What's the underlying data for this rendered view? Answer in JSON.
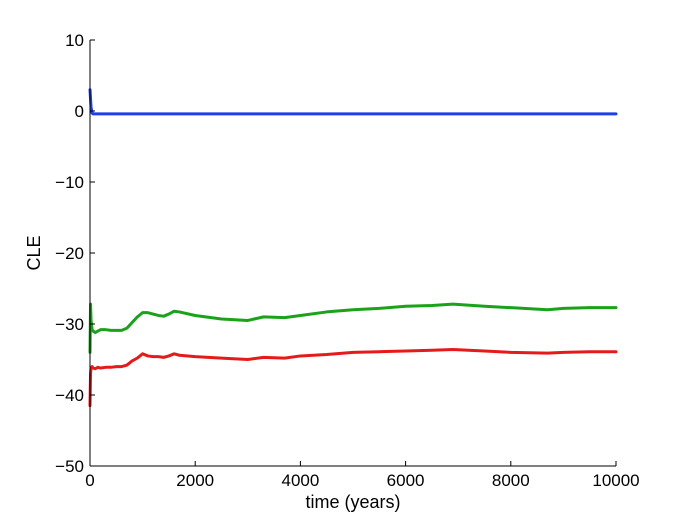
{
  "chart_data": {
    "type": "line",
    "title": "",
    "xlabel": "time (years)",
    "ylabel": "CLE",
    "xlim": [
      0,
      10000
    ],
    "ylim": [
      -50,
      10
    ],
    "xticks": [
      0,
      2000,
      4000,
      6000,
      8000,
      10000
    ],
    "xtick_labels": [
      "0",
      "2000",
      "4000",
      "6000",
      "8000",
      "10000"
    ],
    "yticks": [
      10,
      0,
      -10,
      -20,
      -30,
      -40,
      -50
    ],
    "ytick_labels": [
      "10",
      "0",
      "−10",
      "−20",
      "−30",
      "−40",
      "−50"
    ],
    "grid": false,
    "legend": null,
    "series": [
      {
        "color": "#1f3fe6",
        "x": [
          0,
          20,
          40,
          60,
          100,
          200,
          500,
          1000,
          2000,
          3000,
          4000,
          5000,
          6000,
          7000,
          8000,
          9000,
          10000
        ],
        "y": [
          3,
          0.5,
          -0.3,
          -0.4,
          -0.4,
          -0.4,
          -0.4,
          -0.4,
          -0.4,
          -0.4,
          -0.4,
          -0.4,
          -0.4,
          -0.4,
          -0.4,
          -0.4,
          -0.4
        ]
      },
      {
        "color": "#1aa31a",
        "x": [
          0,
          10,
          20,
          40,
          60,
          100,
          150,
          200,
          300,
          400,
          500,
          600,
          700,
          800,
          900,
          1000,
          1100,
          1200,
          1300,
          1400,
          1500,
          1600,
          1700,
          2000,
          2500,
          3000,
          3300,
          3700,
          4000,
          4500,
          5000,
          5500,
          6000,
          6500,
          6900,
          7500,
          8000,
          8700,
          9000,
          9500,
          10000
        ],
        "y": [
          -34,
          -27.2,
          -29.5,
          -30.8,
          -31,
          -31.2,
          -31,
          -30.8,
          -30.8,
          -30.9,
          -30.9,
          -30.9,
          -30.6,
          -29.8,
          -29.0,
          -28.4,
          -28.4,
          -28.6,
          -28.8,
          -28.9,
          -28.6,
          -28.2,
          -28.3,
          -28.8,
          -29.3,
          -29.5,
          -29.0,
          -29.1,
          -28.8,
          -28.3,
          -28.0,
          -27.8,
          -27.5,
          -27.4,
          -27.2,
          -27.5,
          -27.7,
          -28.0,
          -27.8,
          -27.7,
          -27.7
        ]
      },
      {
        "color": "#e61a1a",
        "x": [
          0,
          10,
          20,
          40,
          60,
          100,
          150,
          200,
          300,
          400,
          500,
          600,
          700,
          800,
          900,
          1000,
          1100,
          1200,
          1300,
          1400,
          1500,
          1600,
          1700,
          2000,
          2500,
          3000,
          3300,
          3700,
          4000,
          4500,
          5000,
          5500,
          6000,
          6500,
          6900,
          7500,
          8000,
          8700,
          9000,
          9500,
          10000
        ],
        "y": [
          -41.5,
          -37,
          -36.2,
          -36.0,
          -36.2,
          -36.3,
          -36.1,
          -36.2,
          -36.1,
          -36.1,
          -36.0,
          -36.0,
          -35.8,
          -35.2,
          -34.8,
          -34.2,
          -34.5,
          -34.6,
          -34.6,
          -34.7,
          -34.5,
          -34.2,
          -34.4,
          -34.6,
          -34.8,
          -35.0,
          -34.7,
          -34.8,
          -34.5,
          -34.3,
          -34.0,
          -33.9,
          -33.8,
          -33.7,
          -33.6,
          -33.8,
          -34.0,
          -34.1,
          -34.0,
          -33.9,
          -33.9
        ]
      }
    ]
  }
}
